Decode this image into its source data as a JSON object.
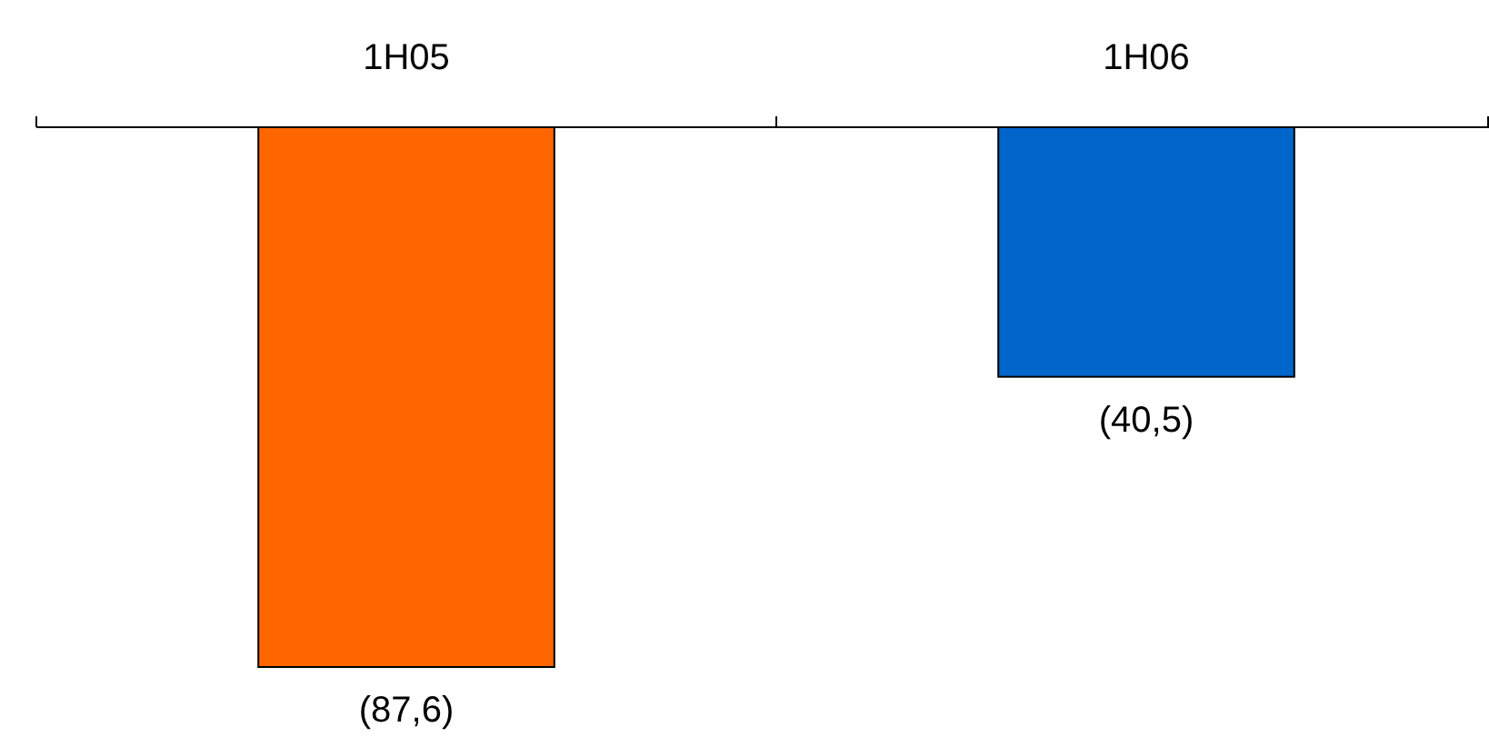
{
  "chart_data": {
    "type": "bar",
    "categories": [
      "1H05",
      "1H06"
    ],
    "values": [
      -87.6,
      -40.5
    ],
    "colors": [
      "#ff6600",
      "#0066cc"
    ],
    "value_labels": [
      "(87,6)",
      "(40,5)"
    ]
  }
}
